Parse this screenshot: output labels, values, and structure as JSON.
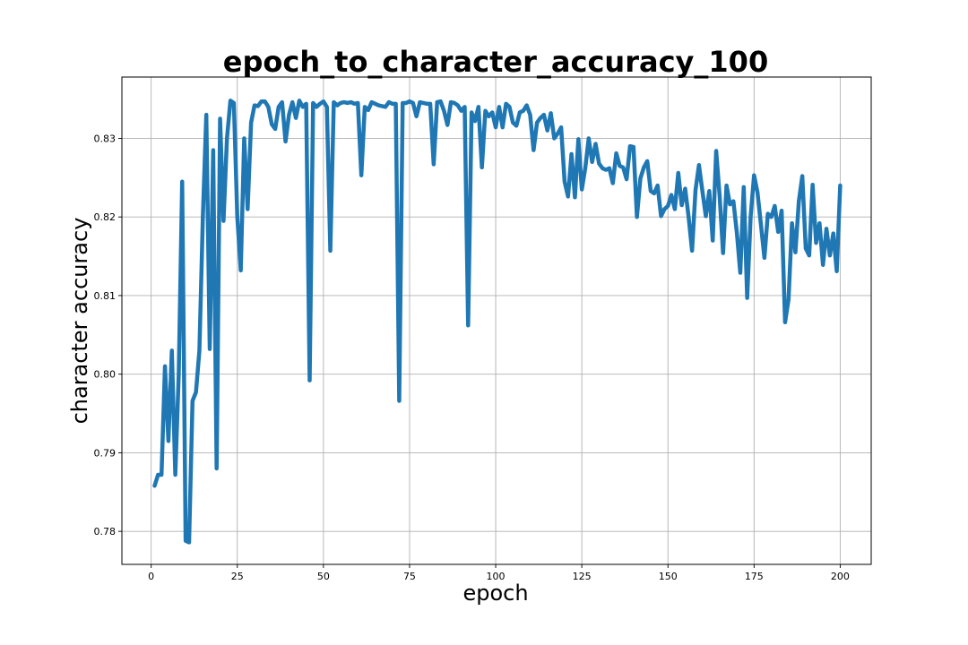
{
  "chart_data": {
    "type": "line",
    "title": "epoch_to_character_accuracy_100",
    "xlabel": "epoch",
    "ylabel": "character accuracy",
    "xlim": [
      -8.5,
      209
    ],
    "ylim": [
      0.7758,
      0.8378
    ],
    "xticks": [
      0,
      25,
      50,
      75,
      100,
      125,
      150,
      175,
      200
    ],
    "yticks": [
      0.78,
      0.79,
      0.8,
      0.81,
      0.82,
      0.83
    ],
    "ytick_labels": [
      "0.78",
      "0.79",
      "0.80",
      "0.81",
      "0.82",
      "0.83"
    ],
    "grid": true,
    "colors": {
      "series": "#1f77b4"
    },
    "series": [
      {
        "x": [
          1,
          2,
          3,
          4,
          5,
          6,
          7,
          8,
          9,
          10,
          11,
          12,
          13,
          14,
          15,
          16,
          17,
          18,
          19,
          20,
          21,
          22,
          23,
          24,
          25,
          26,
          27,
          28,
          29,
          30,
          31,
          32,
          33,
          34,
          35,
          36,
          37,
          38,
          39,
          40,
          41,
          42,
          43,
          44,
          45,
          46,
          47,
          48,
          49,
          50,
          51,
          52,
          53,
          54,
          55,
          56,
          57,
          58,
          59,
          60,
          61,
          62,
          63,
          64,
          65,
          66,
          67,
          68,
          69,
          70,
          71,
          72,
          73,
          74,
          75,
          76,
          77,
          78,
          79,
          80,
          81,
          82,
          83,
          84,
          85,
          86,
          87,
          88,
          89,
          90,
          91,
          92,
          93,
          94,
          95,
          96,
          97,
          98,
          99,
          100,
          101,
          102,
          103,
          104,
          105,
          106,
          107,
          108,
          109,
          110,
          111,
          112,
          113,
          114,
          115,
          116,
          117,
          118,
          119,
          120,
          121,
          122,
          123,
          124,
          125,
          126,
          127,
          128,
          129,
          130,
          131,
          132,
          133,
          134,
          135,
          136,
          137,
          138,
          139,
          140,
          141,
          142,
          143,
          144,
          145,
          146,
          147,
          148,
          149,
          150,
          151,
          152,
          153,
          154,
          155,
          156,
          157,
          158,
          159,
          160,
          161,
          162,
          163,
          164,
          165,
          166,
          167,
          168,
          169,
          170,
          171,
          172,
          173,
          174,
          175,
          176,
          177,
          178,
          179,
          180,
          181,
          182,
          183,
          184,
          185,
          186,
          187,
          188,
          189,
          190,
          191,
          192,
          193,
          194,
          195,
          196,
          197,
          198,
          199,
          200
        ],
        "values": [
          0.7858,
          0.7872,
          0.7872,
          0.801,
          0.7915,
          0.803,
          0.7872,
          0.8,
          0.8245,
          0.7788,
          0.7786,
          0.7966,
          0.7977,
          0.803,
          0.82,
          0.833,
          0.8032,
          0.8285,
          0.788,
          0.8325,
          0.8195,
          0.83,
          0.8348,
          0.8345,
          0.82,
          0.8132,
          0.83,
          0.821,
          0.832,
          0.8342,
          0.8341,
          0.8347,
          0.8347,
          0.834,
          0.8318,
          0.8312,
          0.834,
          0.8346,
          0.8296,
          0.833,
          0.8346,
          0.8326,
          0.8348,
          0.834,
          0.8344,
          0.7992,
          0.8345,
          0.834,
          0.8344,
          0.8347,
          0.834,
          0.8157,
          0.8346,
          0.8342,
          0.8345,
          0.8346,
          0.8345,
          0.8346,
          0.8344,
          0.8345,
          0.8253,
          0.834,
          0.8336,
          0.8346,
          0.8344,
          0.8342,
          0.8341,
          0.834,
          0.8346,
          0.8344,
          0.8344,
          0.7966,
          0.8345,
          0.8345,
          0.8347,
          0.8345,
          0.8328,
          0.8346,
          0.8345,
          0.8344,
          0.8344,
          0.8267,
          0.8346,
          0.8347,
          0.8335,
          0.8317,
          0.8346,
          0.8345,
          0.8342,
          0.8335,
          0.834,
          0.8062,
          0.8333,
          0.8322,
          0.834,
          0.8263,
          0.8335,
          0.8328,
          0.8333,
          0.8314,
          0.834,
          0.8314,
          0.8344,
          0.834,
          0.832,
          0.8316,
          0.8333,
          0.8335,
          0.8342,
          0.833,
          0.8285,
          0.832,
          0.8326,
          0.833,
          0.831,
          0.8332,
          0.83,
          0.8306,
          0.8314,
          0.8245,
          0.8226,
          0.828,
          0.8225,
          0.8299,
          0.8235,
          0.8262,
          0.83,
          0.827,
          0.8293,
          0.8268,
          0.8262,
          0.826,
          0.8262,
          0.8243,
          0.8281,
          0.8265,
          0.8263,
          0.8248,
          0.829,
          0.8289,
          0.82,
          0.8249,
          0.8263,
          0.8271,
          0.8233,
          0.823,
          0.824,
          0.8201,
          0.821,
          0.8214,
          0.8228,
          0.821,
          0.8256,
          0.8215,
          0.8236,
          0.82,
          0.8157,
          0.8234,
          0.8266,
          0.8233,
          0.8201,
          0.8233,
          0.817,
          0.8284,
          0.8227,
          0.8154,
          0.824,
          0.8216,
          0.822,
          0.818,
          0.8129,
          0.8238,
          0.8097,
          0.82,
          0.8253,
          0.8231,
          0.819,
          0.8148,
          0.8204,
          0.82,
          0.8214,
          0.8181,
          0.8208,
          0.8066,
          0.8095,
          0.8192,
          0.8155,
          0.822,
          0.8252,
          0.816,
          0.8151,
          0.8241,
          0.8167,
          0.8192,
          0.8139,
          0.8185,
          0.8151,
          0.8179,
          0.8131,
          0.824
        ]
      }
    ]
  }
}
